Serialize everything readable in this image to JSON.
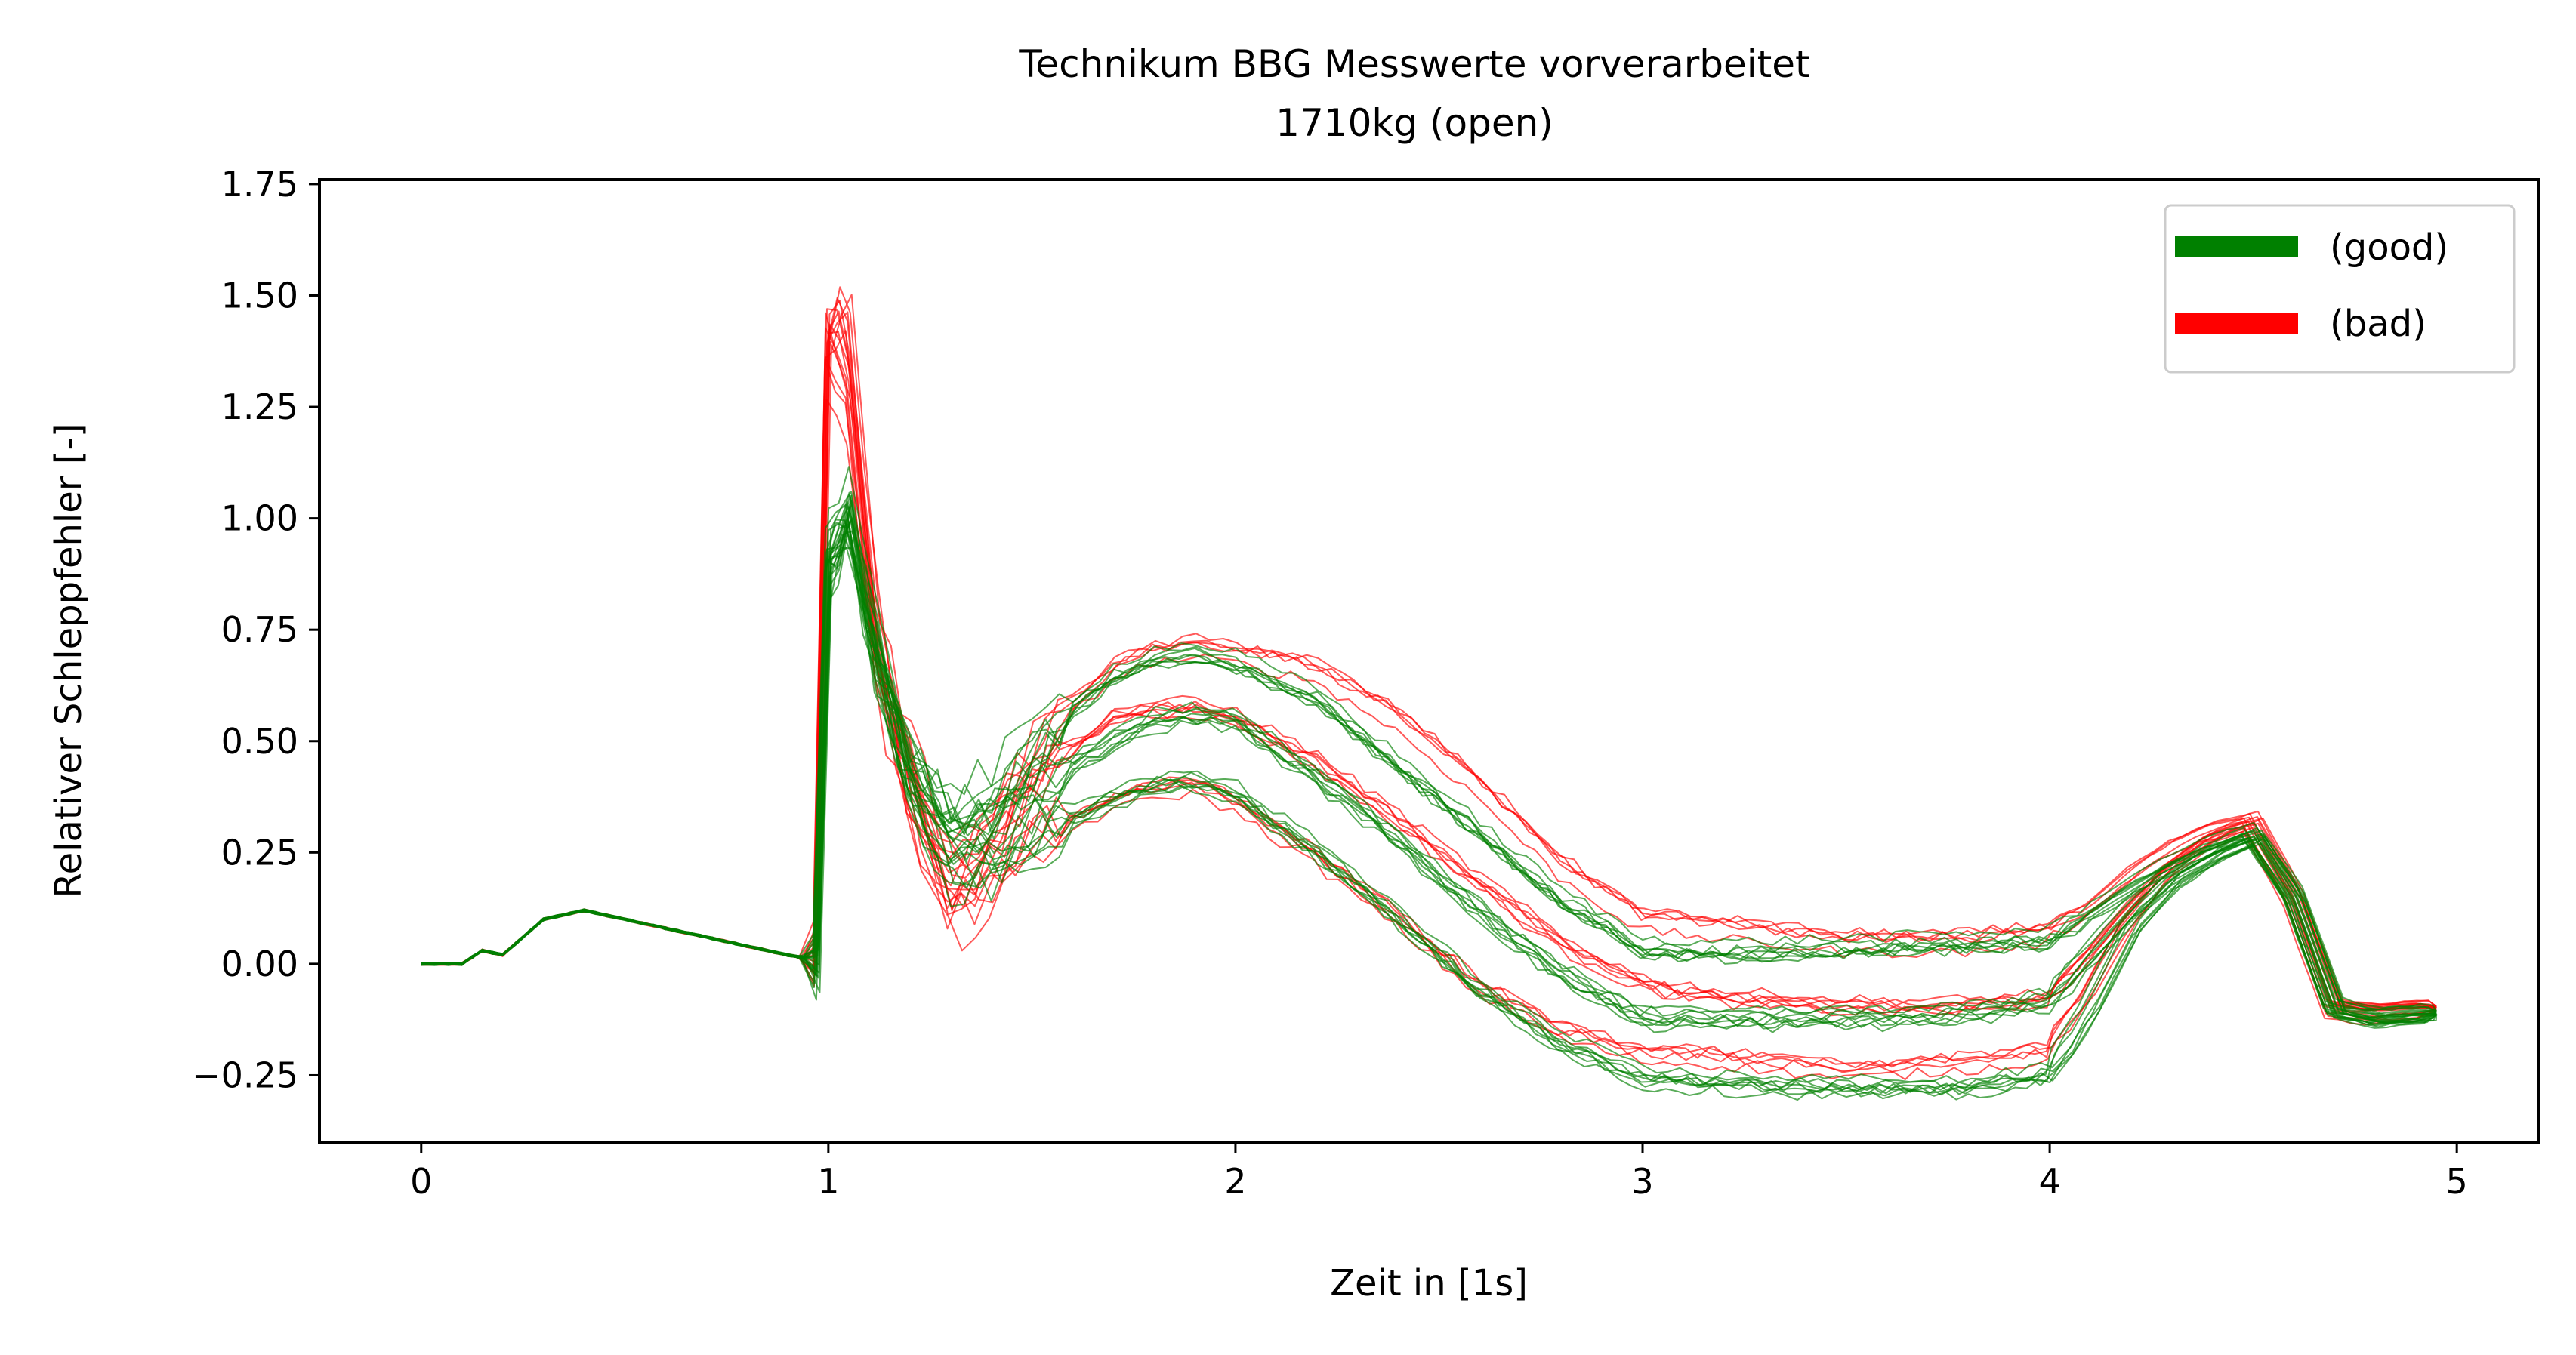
{
  "chart_data": {
    "type": "line",
    "title": "Technikum BBG Messwerte vorverarbeitet",
    "subtitle": "1710kg (open)",
    "xlabel": "Zeit in [1s]",
    "ylabel": "Relativer Schleppfehler [-]",
    "xlim": [
      -0.25,
      5.2
    ],
    "ylim": [
      -0.4,
      1.76
    ],
    "xticks": [
      0,
      1,
      2,
      3,
      4,
      5
    ],
    "xtick_labels": [
      "0",
      "1",
      "2",
      "3",
      "4",
      "5"
    ],
    "yticks": [
      -0.25,
      0,
      0.25,
      0.5,
      0.75,
      1.0,
      1.25,
      1.5,
      1.75
    ],
    "ytick_labels": [
      "−0.25",
      "0.00",
      "0.25",
      "0.50",
      "0.75",
      "1.00",
      "1.25",
      "1.50",
      "1.75"
    ],
    "grid": false,
    "legend_position": "top-right",
    "legend": [
      {
        "label": "(good)",
        "color": "#008000"
      },
      {
        "label": "(bad)",
        "color": "#ff0000"
      }
    ],
    "series_groups": [
      {
        "class": "good",
        "color": "#008000",
        "count": 24,
        "templates": [
          {
            "x": [
              0,
              0.1,
              0.15,
              0.2,
              0.3,
              0.4,
              0.6,
              0.8,
              0.9,
              0.97,
              1.0,
              1.05,
              1.12,
              1.2,
              1.3,
              1.4,
              1.5,
              1.6,
              1.7,
              1.8,
              1.9,
              2.0,
              2.2,
              2.4,
              2.6,
              2.8,
              3.0,
              3.2,
              3.5,
              3.8,
              4.0,
              4.1,
              4.2,
              4.3,
              4.4,
              4.5,
              4.6,
              4.7,
              4.8,
              4.95
            ],
            "y": [
              0,
              0,
              0.03,
              0.02,
              0.1,
              0.12,
              0.08,
              0.04,
              0.02,
              0.01,
              0.9,
              1.0,
              0.7,
              0.45,
              0.3,
              0.3,
              0.38,
              0.45,
              0.5,
              0.55,
              0.56,
              0.55,
              0.42,
              0.28,
              0.12,
              -0.02,
              -0.12,
              -0.12,
              -0.12,
              -0.11,
              -0.08,
              0.02,
              0.12,
              0.2,
              0.25,
              0.29,
              0.15,
              -0.1,
              -0.12,
              -0.11
            ]
          },
          {
            "x": [
              0,
              0.1,
              0.15,
              0.2,
              0.3,
              0.4,
              0.6,
              0.8,
              0.9,
              0.97,
              1.0,
              1.05,
              1.12,
              1.2,
              1.3,
              1.4,
              1.5,
              1.6,
              1.7,
              1.8,
              1.9,
              2.0,
              2.2,
              2.4,
              2.6,
              2.8,
              3.0,
              3.2,
              3.5,
              3.8,
              4.0,
              4.1,
              4.2,
              4.3,
              4.4,
              4.5,
              4.6,
              4.7,
              4.8,
              4.95
            ],
            "y": [
              0,
              0,
              0.03,
              0.02,
              0.1,
              0.12,
              0.08,
              0.04,
              0.02,
              0.01,
              0.9,
              1.0,
              0.65,
              0.4,
              0.2,
              0.22,
              0.28,
              0.33,
              0.37,
              0.4,
              0.41,
              0.38,
              0.25,
              0.1,
              -0.06,
              -0.18,
              -0.26,
              -0.27,
              -0.28,
              -0.28,
              -0.25,
              -0.1,
              0.08,
              0.18,
              0.24,
              0.28,
              0.15,
              -0.1,
              -0.12,
              -0.11
            ]
          },
          {
            "x": [
              0,
              0.1,
              0.15,
              0.2,
              0.3,
              0.4,
              0.6,
              0.8,
              0.9,
              0.97,
              1.0,
              1.05,
              1.12,
              1.2,
              1.3,
              1.4,
              1.5,
              1.6,
              1.7,
              1.8,
              1.9,
              2.0,
              2.2,
              2.4,
              2.6,
              2.8,
              3.0,
              3.2,
              3.5,
              3.8,
              4.0,
              4.1,
              4.2,
              4.3,
              4.4,
              4.5,
              4.6,
              4.7,
              4.8,
              4.95
            ],
            "y": [
              0,
              0,
              0.03,
              0.02,
              0.1,
              0.12,
              0.08,
              0.04,
              0.02,
              0.01,
              0.95,
              1.02,
              0.72,
              0.48,
              0.35,
              0.38,
              0.48,
              0.58,
              0.65,
              0.69,
              0.7,
              0.68,
              0.6,
              0.45,
              0.3,
              0.15,
              0.04,
              0.03,
              0.04,
              0.05,
              0.06,
              0.12,
              0.18,
              0.23,
              0.27,
              0.3,
              0.15,
              -0.1,
              -0.12,
              -0.11
            ]
          }
        ]
      },
      {
        "class": "bad",
        "color": "#ff0000",
        "count": 16,
        "templates": [
          {
            "x": [
              0,
              0.1,
              0.15,
              0.2,
              0.3,
              0.4,
              0.6,
              0.8,
              0.9,
              0.97,
              1.0,
              1.05,
              1.12,
              1.2,
              1.3,
              1.4,
              1.5,
              1.6,
              1.7,
              1.8,
              1.9,
              2.0,
              2.2,
              2.4,
              2.6,
              2.8,
              3.0,
              3.2,
              3.5,
              3.8,
              4.0,
              4.1,
              4.2,
              4.3,
              4.4,
              4.5,
              4.6,
              4.7,
              4.8,
              4.95
            ],
            "y": [
              0,
              0,
              0.03,
              0.02,
              0.1,
              0.12,
              0.08,
              0.04,
              0.02,
              0.01,
              1.45,
              1.35,
              0.7,
              0.4,
              0.15,
              0.25,
              0.38,
              0.48,
              0.55,
              0.57,
              0.57,
              0.55,
              0.45,
              0.32,
              0.18,
              0.04,
              -0.05,
              -0.08,
              -0.1,
              -0.1,
              -0.08,
              0.02,
              0.13,
              0.22,
              0.28,
              0.31,
              0.15,
              -0.1,
              -0.11,
              -0.1
            ]
          },
          {
            "x": [
              0,
              0.1,
              0.15,
              0.2,
              0.3,
              0.4,
              0.6,
              0.8,
              0.9,
              0.97,
              1.0,
              1.05,
              1.12,
              1.2,
              1.3,
              1.4,
              1.5,
              1.6,
              1.7,
              1.8,
              1.9,
              2.0,
              2.2,
              2.4,
              2.6,
              2.8,
              3.0,
              3.2,
              3.5,
              3.8,
              4.0,
              4.1,
              4.2,
              4.3,
              4.4,
              4.5,
              4.6,
              4.7,
              4.8,
              4.95
            ],
            "y": [
              0,
              0,
              0.03,
              0.02,
              0.1,
              0.12,
              0.08,
              0.04,
              0.02,
              0.01,
              1.35,
              1.25,
              0.65,
              0.35,
              0.1,
              0.15,
              0.25,
              0.32,
              0.36,
              0.39,
              0.4,
              0.36,
              0.24,
              0.1,
              -0.05,
              -0.15,
              -0.2,
              -0.21,
              -0.24,
              -0.22,
              -0.2,
              -0.08,
              0.08,
              0.2,
              0.27,
              0.31,
              0.15,
              -0.1,
              -0.11,
              -0.1
            ]
          },
          {
            "x": [
              0,
              0.1,
              0.15,
              0.2,
              0.3,
              0.4,
              0.6,
              0.8,
              0.9,
              0.97,
              1.0,
              1.05,
              1.12,
              1.2,
              1.3,
              1.4,
              1.5,
              1.6,
              1.7,
              1.8,
              1.9,
              2.0,
              2.2,
              2.4,
              2.6,
              2.8,
              3.0,
              3.2,
              3.5,
              3.8,
              4.0,
              4.1,
              4.2,
              4.3,
              4.4,
              4.5,
              4.6,
              4.7,
              4.8,
              4.95
            ],
            "y": [
              0,
              0,
              0.03,
              0.02,
              0.1,
              0.12,
              0.08,
              0.04,
              0.02,
              0.01,
              1.4,
              1.45,
              0.75,
              0.45,
              0.2,
              0.3,
              0.45,
              0.58,
              0.66,
              0.7,
              0.71,
              0.7,
              0.66,
              0.55,
              0.4,
              0.22,
              0.1,
              0.08,
              0.05,
              0.05,
              0.07,
              0.12,
              0.2,
              0.26,
              0.3,
              0.32,
              0.15,
              -0.1,
              -0.11,
              -0.1
            ]
          }
        ]
      }
    ]
  }
}
